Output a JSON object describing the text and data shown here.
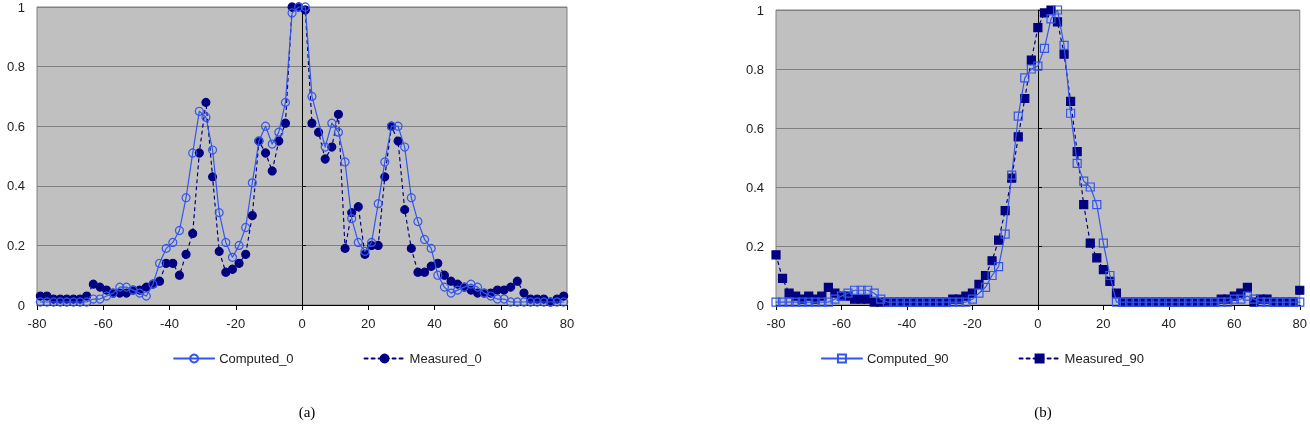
{
  "chart_data": [
    {
      "type": "line",
      "xlim": [
        -80,
        80
      ],
      "xticks": [
        -80,
        -60,
        -40,
        -20,
        0,
        20,
        40,
        60,
        80
      ],
      "ylim": [
        0,
        1
      ],
      "yticks": [
        0,
        0.2,
        0.4,
        0.6,
        0.8,
        1
      ],
      "grid": "y",
      "legend": "bottom",
      "marker": "circle",
      "annotations": [
        "(a)"
      ],
      "series": [
        {
          "name": "Computed_0",
          "color": "#3355ee",
          "line_style": "solid",
          "x": [
            -79,
            -77,
            -75,
            -73,
            -71,
            -69,
            -67,
            -65,
            -63,
            -61,
            -59,
            -57,
            -55,
            -53,
            -51,
            -49,
            -47,
            -45,
            -43,
            -41,
            -39,
            -37,
            -35,
            -33,
            -31,
            -29,
            -27,
            -25,
            -23,
            -21,
            -19,
            -17,
            -15,
            -13,
            -11,
            -9,
            -7,
            -5,
            -3,
            -1,
            1,
            3,
            7,
            9,
            11,
            13,
            15,
            17,
            19,
            21,
            23,
            25,
            27,
            29,
            31,
            33,
            35,
            37,
            39,
            41,
            43,
            45,
            47,
            49,
            51,
            53,
            55,
            57,
            59,
            61,
            63,
            65,
            67,
            69,
            71,
            73,
            75,
            77,
            79
          ],
          "values": [
            0.01,
            0.01,
            0.01,
            0.01,
            0.01,
            0.01,
            0.01,
            0.01,
            0.02,
            0.02,
            0.03,
            0.04,
            0.06,
            0.06,
            0.05,
            0.04,
            0.03,
            0.07,
            0.14,
            0.19,
            0.21,
            0.25,
            0.36,
            0.51,
            0.65,
            0.63,
            0.52,
            0.31,
            0.21,
            0.16,
            0.2,
            0.26,
            0.41,
            0.55,
            0.6,
            0.54,
            0.58,
            0.68,
            0.98,
            1,
            1,
            0.7,
            0.53,
            0.61,
            0.58,
            0.48,
            0.29,
            0.21,
            0.18,
            0.21,
            0.34,
            0.48,
            0.6,
            0.6,
            0.53,
            0.36,
            0.28,
            0.22,
            0.19,
            0.1,
            0.06,
            0.04,
            0.05,
            0.06,
            0.07,
            0.06,
            0.04,
            0.03,
            0.02,
            0.02,
            0.01,
            0.01,
            0.01,
            0.01,
            0.01,
            0.01,
            0.01,
            0.01,
            0.01
          ]
        },
        {
          "name": "Measured_0",
          "color": "#000080",
          "line_style": "dotted",
          "x": [
            -79,
            -77,
            -75,
            -73,
            -71,
            -69,
            -67,
            -65,
            -63,
            -61,
            -59,
            -57,
            -55,
            -53,
            -51,
            -49,
            -47,
            -45,
            -43,
            -41,
            -39,
            -37,
            -35,
            -33,
            -31,
            -29,
            -27,
            -25,
            -23,
            -21,
            -19,
            -17,
            -15,
            -13,
            -11,
            -9,
            -7,
            -5,
            -3,
            -1,
            1,
            3,
            5,
            7,
            9,
            11,
            13,
            15,
            17,
            19,
            21,
            23,
            25,
            27,
            29,
            31,
            33,
            35,
            37,
            39,
            41,
            43,
            45,
            47,
            49,
            51,
            53,
            55,
            57,
            59,
            61,
            63,
            65,
            67,
            69,
            71,
            73,
            75,
            77,
            79
          ],
          "values": [
            0.03,
            0.03,
            0.02,
            0.02,
            0.02,
            0.02,
            0.02,
            0.03,
            0.07,
            0.06,
            0.05,
            0.04,
            0.04,
            0.04,
            0.05,
            0.05,
            0.06,
            0.07,
            0.08,
            0.14,
            0.14,
            0.1,
            0.17,
            0.24,
            0.51,
            0.68,
            0.43,
            0.18,
            0.11,
            0.12,
            0.14,
            0.17,
            0.3,
            0.55,
            0.51,
            0.45,
            0.55,
            0.61,
            1,
            1,
            0.99,
            0.61,
            0.58,
            0.49,
            0.53,
            0.64,
            0.19,
            0.31,
            0.33,
            0.17,
            0.2,
            0.2,
            0.43,
            0.6,
            0.55,
            0.32,
            0.19,
            0.11,
            0.11,
            0.13,
            0.14,
            0.1,
            0.08,
            0.07,
            0.06,
            0.05,
            0.04,
            0.04,
            0.04,
            0.05,
            0.05,
            0.06,
            0.08,
            0.04,
            0.02,
            0.02,
            0.02,
            0.01,
            0.02,
            0.03
          ]
        }
      ]
    },
    {
      "type": "line",
      "xlim": [
        -80,
        80
      ],
      "xticks": [
        -80,
        -60,
        -40,
        -20,
        0,
        20,
        40,
        60,
        80
      ],
      "ylim": [
        0,
        1
      ],
      "yticks": [
        0,
        0.2,
        0.4,
        0.6,
        0.8,
        1
      ],
      "grid": "y",
      "legend": "bottom",
      "marker": "square",
      "annotations": [
        "(b)"
      ],
      "series": [
        {
          "name": "Computed_90",
          "color": "#3355ee",
          "line_style": "solid",
          "x": [
            -80,
            -78,
            -76,
            -74,
            -72,
            -70,
            -68,
            -66,
            -64,
            -62,
            -60,
            -58,
            -56,
            -54,
            -52,
            -50,
            -48,
            -46,
            -44,
            -42,
            -40,
            -38,
            -36,
            -34,
            -32,
            -30,
            -28,
            -26,
            -24,
            -22,
            -20,
            -18,
            -16,
            -14,
            -12,
            -10,
            -8,
            -6,
            -4,
            -2,
            0,
            2,
            4,
            6,
            8,
            10,
            12,
            14,
            16,
            18,
            20,
            22,
            24,
            26,
            28,
            30,
            32,
            34,
            36,
            38,
            40,
            42,
            44,
            46,
            48,
            50,
            52,
            54,
            56,
            58,
            60,
            62,
            64,
            66,
            68,
            70,
            72,
            74,
            76,
            78,
            80
          ],
          "values": [
            0.01,
            0.01,
            0.01,
            0.01,
            0.01,
            0.01,
            0.01,
            0.01,
            0.01,
            0.02,
            0.03,
            0.04,
            0.05,
            0.05,
            0.05,
            0.04,
            0.02,
            0.01,
            0.01,
            0.01,
            0.01,
            0.01,
            0.01,
            0.01,
            0.01,
            0.01,
            0.01,
            0.01,
            0.01,
            0.01,
            0.02,
            0.04,
            0.06,
            0.1,
            0.13,
            0.24,
            0.44,
            0.64,
            0.77,
            0.8,
            0.81,
            0.87,
            0.97,
            1,
            0.88,
            0.65,
            0.48,
            0.42,
            0.4,
            0.34,
            0.21,
            0.1,
            0.01,
            0.01,
            0.01,
            0.01,
            0.01,
            0.01,
            0.01,
            0.01,
            0.01,
            0.01,
            0.01,
            0.01,
            0.01,
            0.01,
            0.01,
            0.01,
            0.01,
            0.01,
            0.02,
            0.02,
            0.03,
            0.02,
            0.01,
            0.01,
            0.01,
            0.01,
            0.01,
            0.01,
            0.01
          ]
        },
        {
          "name": "Measured_90",
          "color": "#000080",
          "line_style": "dotted",
          "x": [
            -80,
            -78,
            -76,
            -74,
            -72,
            -70,
            -68,
            -66,
            -64,
            -62,
            -60,
            -58,
            -56,
            -54,
            -52,
            -50,
            -48,
            -46,
            -44,
            -42,
            -40,
            -38,
            -36,
            -34,
            -32,
            -30,
            -28,
            -26,
            -24,
            -22,
            -20,
            -18,
            -16,
            -14,
            -12,
            -10,
            -8,
            -6,
            -4,
            -2,
            0,
            2,
            4,
            6,
            8,
            10,
            12,
            14,
            16,
            18,
            20,
            22,
            24,
            26,
            28,
            30,
            32,
            34,
            36,
            38,
            40,
            42,
            44,
            46,
            48,
            50,
            52,
            54,
            56,
            58,
            60,
            62,
            64,
            66,
            68,
            70,
            72,
            74,
            76,
            78,
            80
          ],
          "values": [
            0.17,
            0.09,
            0.04,
            0.03,
            0.02,
            0.03,
            0.02,
            0.03,
            0.06,
            0.04,
            0.03,
            0.03,
            0.02,
            0.02,
            0.02,
            0.01,
            0.01,
            0.01,
            0.01,
            0.01,
            0.01,
            0.01,
            0.01,
            0.01,
            0.01,
            0.01,
            0.01,
            0.02,
            0.02,
            0.03,
            0.04,
            0.07,
            0.1,
            0.15,
            0.22,
            0.32,
            0.43,
            0.57,
            0.7,
            0.83,
            0.94,
            0.99,
            1,
            0.96,
            0.85,
            0.69,
            0.52,
            0.34,
            0.21,
            0.16,
            0.12,
            0.08,
            0.04,
            0.01,
            0.01,
            0.01,
            0.01,
            0.01,
            0.01,
            0.01,
            0.01,
            0.01,
            0.01,
            0.01,
            0.01,
            0.01,
            0.01,
            0.01,
            0.02,
            0.02,
            0.03,
            0.04,
            0.06,
            0.01,
            0.02,
            0.02,
            0.01,
            0.01,
            0.01,
            0.01,
            0.05
          ]
        }
      ]
    }
  ]
}
